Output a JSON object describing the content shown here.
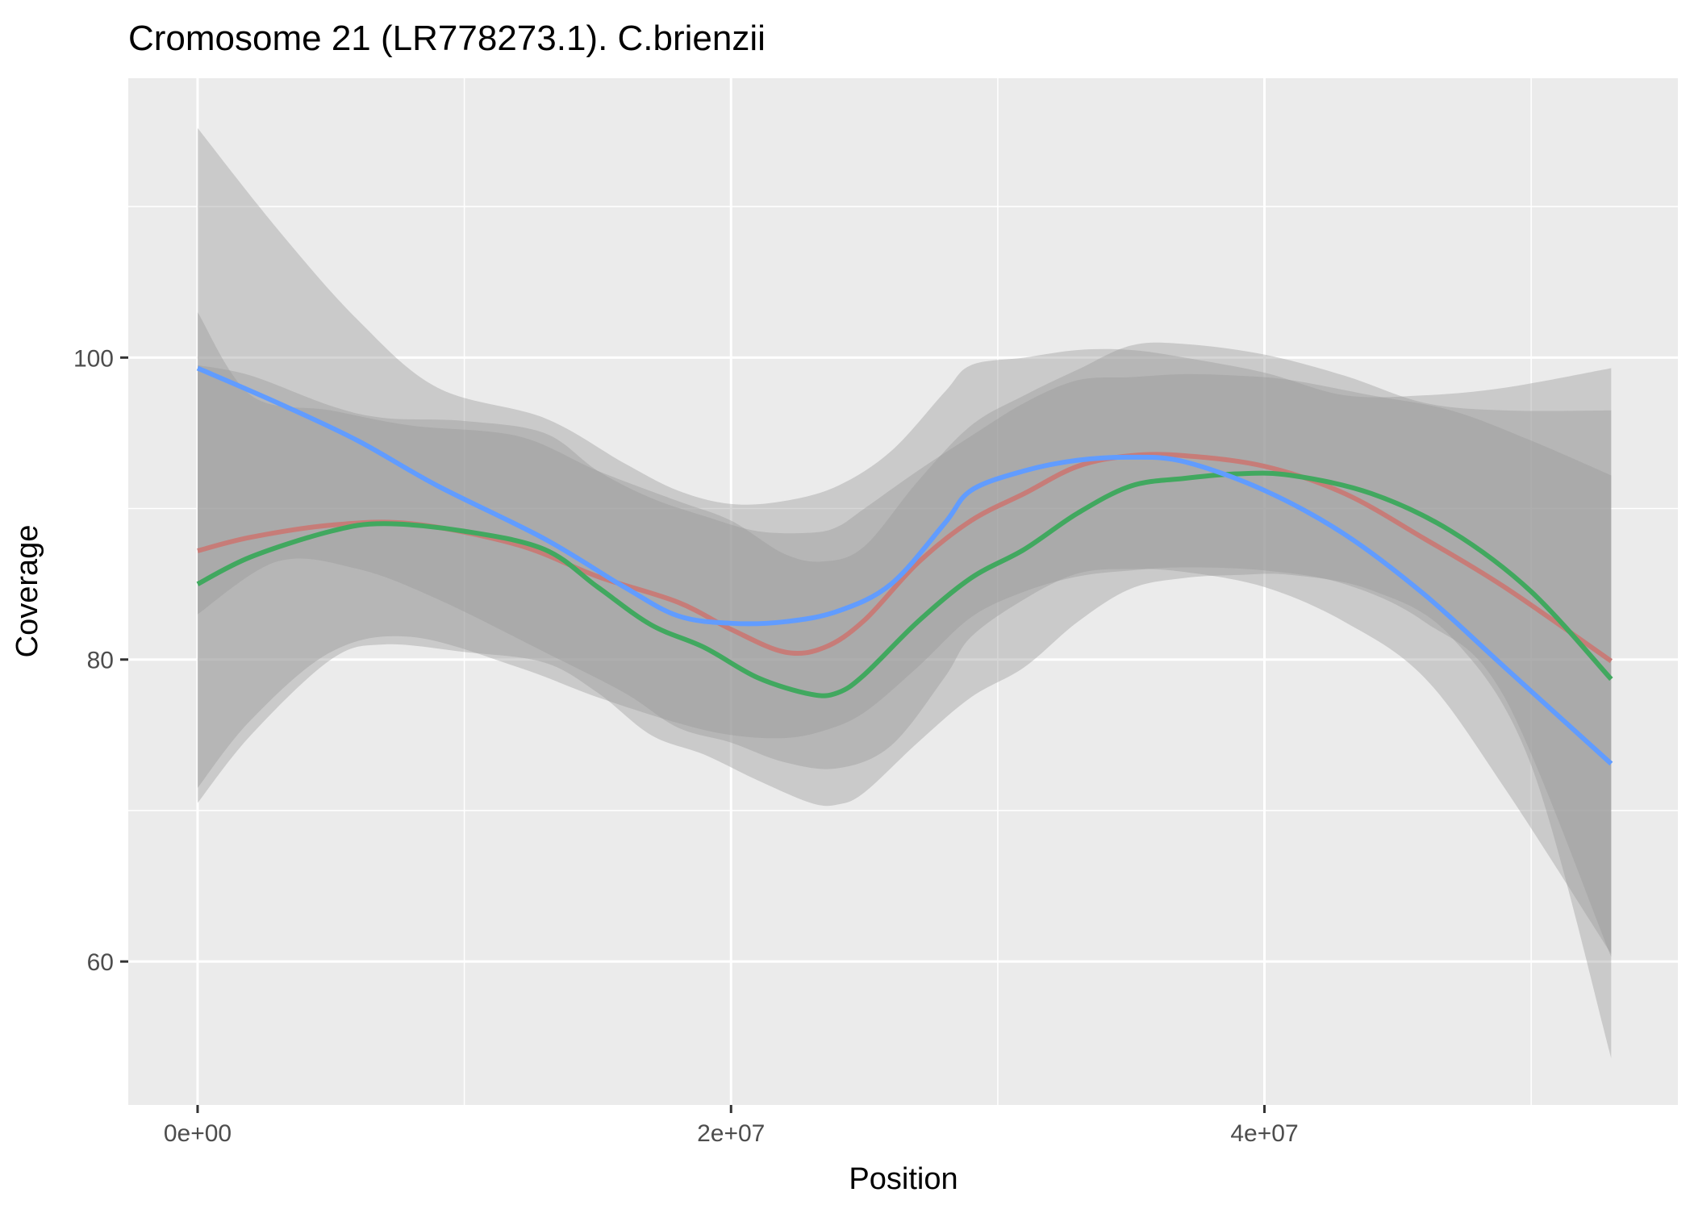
{
  "chart_data": {
    "type": "line",
    "title": "Cromosome 21 (LR778273.1). C.brienzii",
    "xlabel": "Position",
    "ylabel": "Coverage",
    "xlim": [
      -2600000,
      55500000
    ],
    "ylim": [
      50.5,
      118.5
    ],
    "x_ticks": [
      0,
      20000000,
      40000000
    ],
    "x_tick_labels": [
      "0e+00",
      "2e+07",
      "4e+07"
    ],
    "x_minor_ticks": [
      10000000,
      30000000,
      50000000
    ],
    "y_ticks": [
      60,
      80,
      100
    ],
    "y_tick_labels": [
      "60",
      "80",
      "100"
    ],
    "y_minor_ticks": [
      70,
      90,
      110
    ],
    "grid": true,
    "legend": "none",
    "colors": {
      "panel_background": "#ebebeb",
      "grid_line": "#ffffff",
      "ribbon": "#999999",
      "tick_text": "#4d4d4d"
    },
    "series": [
      {
        "color": "#c77c78",
        "x": [
          0,
          2000000,
          5000000,
          8000000,
          12000000,
          15000000,
          18000000,
          20000000,
          22000000,
          23500000,
          25000000,
          27000000,
          29000000,
          31000000,
          33000000,
          35000000,
          37000000,
          40000000,
          43000000,
          46000000,
          49000000,
          53000000
        ],
        "y": [
          87.2,
          88.1,
          88.9,
          89.0,
          87.6,
          85.5,
          83.8,
          82.0,
          80.5,
          80.8,
          82.6,
          86.4,
          89.2,
          91.0,
          92.8,
          93.5,
          93.5,
          92.8,
          91.0,
          88.0,
          84.8,
          79.9
        ],
        "ci_low": [
          71.5,
          76.0,
          80.5,
          81.5,
          79.5,
          77.5,
          75.8,
          75.0,
          74.8,
          75.3,
          76.5,
          79.5,
          82.8,
          84.5,
          85.5,
          85.9,
          86.1,
          85.9,
          85.0,
          82.5,
          77.5,
          60.3
        ],
        "ci_high": [
          103.0,
          97.5,
          96.5,
          95.5,
          94.8,
          92.5,
          90.5,
          89.2,
          87.0,
          86.5,
          87.5,
          91.8,
          95.5,
          97.5,
          99.2,
          100.8,
          100.9,
          100.2,
          98.8,
          97.0,
          96.5,
          96.5
        ]
      },
      {
        "color": "#41a85f",
        "x": [
          0,
          2000000,
          5000000,
          7000000,
          10000000,
          13000000,
          15000000,
          17000000,
          19000000,
          21000000,
          23000000,
          24000000,
          25000000,
          27000000,
          29000000,
          31000000,
          33000000,
          35000000,
          37000000,
          39000000,
          41000000,
          44000000,
          47000000,
          50000000,
          53000000
        ],
        "y": [
          85.0,
          86.8,
          88.5,
          89.0,
          88.5,
          87.3,
          84.8,
          82.3,
          80.8,
          78.8,
          77.7,
          77.8,
          79.0,
          82.5,
          85.4,
          87.3,
          89.7,
          91.5,
          92.0,
          92.3,
          92.2,
          91.0,
          88.5,
          84.5,
          78.7
        ],
        "ci_low": [
          70.5,
          75.0,
          80.0,
          81.0,
          80.5,
          79.8,
          77.8,
          75.0,
          73.7,
          72.0,
          70.5,
          70.4,
          71.2,
          74.5,
          77.5,
          79.5,
          82.5,
          84.7,
          85.4,
          85.6,
          85.6,
          84.6,
          81.5,
          73.0,
          53.6
        ],
        "ci_high": [
          99.5,
          98.8,
          96.8,
          96.0,
          95.8,
          95.0,
          92.5,
          90.7,
          89.5,
          88.5,
          88.4,
          88.8,
          90.0,
          92.5,
          94.8,
          97.0,
          98.5,
          98.7,
          98.9,
          98.8,
          98.5,
          97.5,
          96.5,
          94.5,
          92.2
        ]
      },
      {
        "color": "#619cff",
        "x": [
          0,
          3000000,
          6000000,
          9000000,
          13000000,
          16000000,
          18000000,
          20000000,
          22000000,
          24000000,
          26000000,
          28000000,
          29000000,
          31000000,
          33000000,
          35000000,
          37000000,
          40000000,
          43000000,
          46000000,
          49000000,
          53000000
        ],
        "y": [
          99.3,
          97.0,
          94.5,
          91.5,
          88.0,
          84.8,
          82.9,
          82.4,
          82.5,
          83.2,
          85.0,
          89.0,
          91.2,
          92.5,
          93.2,
          93.4,
          93.1,
          91.2,
          88.3,
          84.3,
          79.5,
          73.1
        ],
        "ci_low": [
          83.0,
          86.5,
          86.0,
          84.0,
          80.5,
          77.8,
          75.5,
          74.5,
          73.2,
          72.8,
          74.3,
          78.8,
          81.5,
          84.0,
          85.7,
          86.0,
          85.8,
          84.8,
          82.5,
          78.8,
          71.5,
          60.5
        ],
        "ci_high": [
          115.2,
          108.5,
          102.5,
          98.0,
          96.0,
          93.0,
          91.2,
          90.3,
          90.5,
          91.5,
          93.8,
          97.7,
          99.5,
          100.0,
          100.5,
          100.5,
          100.0,
          99.0,
          97.5,
          97.5,
          98.0,
          99.3
        ]
      }
    ]
  }
}
